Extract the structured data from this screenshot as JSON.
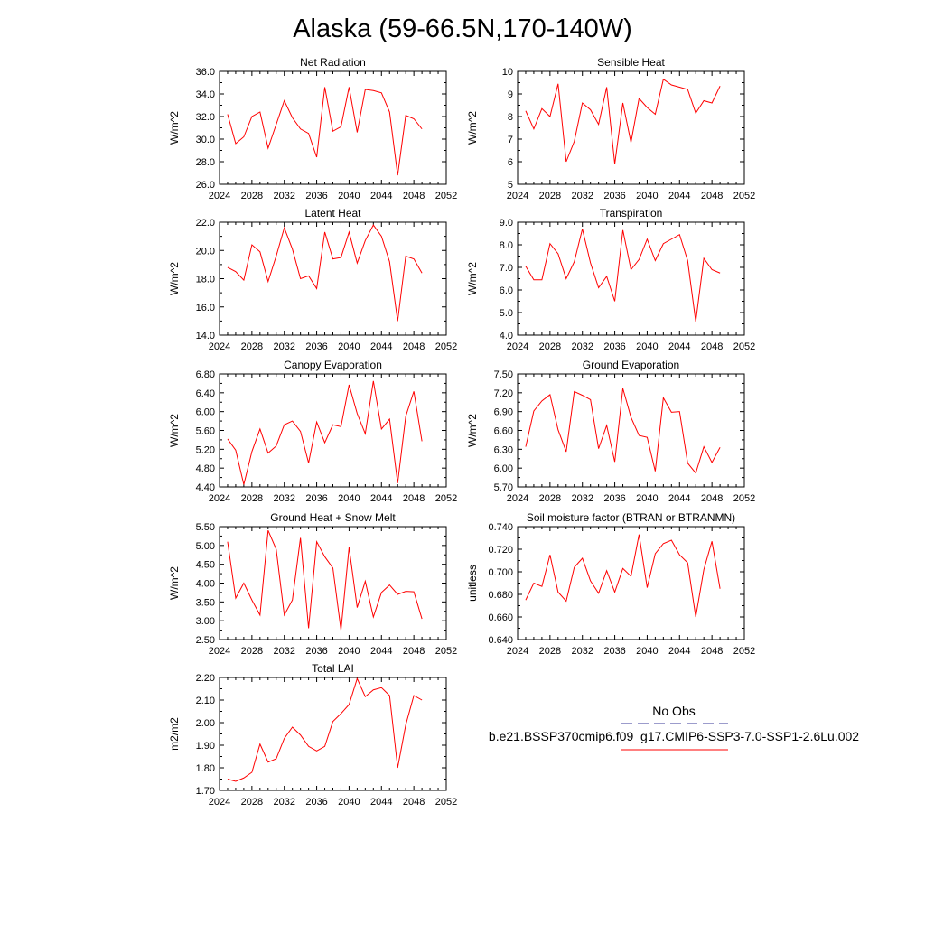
{
  "figure": {
    "title": "Alaska (59-66.5N,170-140W)"
  },
  "legend": {
    "obs_label": "No Obs",
    "model_label": "b.e21.BSSP370cmip6.f09_g17.CMIP6-SSP3-7.0-SSP1-2.6Lu.002",
    "obs_color": "#3a3a9a",
    "model_color": "#ff0000"
  },
  "chart_data": [
    {
      "type": "line",
      "title": "Net Radiation",
      "ylabel": "W/m^2",
      "xlabel": "",
      "xlim": [
        2024,
        2052
      ],
      "ylim": [
        26.0,
        36.0
      ],
      "xticks": [
        "2024",
        "2028",
        "2032",
        "2036",
        "2040",
        "2044",
        "2048",
        "2052"
      ],
      "yticks": [
        "26.0",
        "28.0",
        "30.0",
        "32.0",
        "34.0",
        "36.0"
      ],
      "x": [
        2025,
        2026,
        2027,
        2028,
        2029,
        2030,
        2031,
        2032,
        2033,
        2034,
        2035,
        2036,
        2037,
        2038,
        2039,
        2040,
        2041,
        2042,
        2043,
        2044,
        2045,
        2046,
        2047,
        2048,
        2049
      ],
      "series": [
        {
          "values": [
            32.2,
            29.6,
            30.2,
            32.0,
            32.4,
            29.2,
            31.3,
            33.4,
            31.9,
            30.9,
            30.5,
            28.4,
            34.6,
            30.7,
            31.1,
            34.6,
            30.6,
            34.4,
            34.3,
            34.1,
            32.4,
            26.8,
            32.1,
            31.8,
            30.9
          ],
          "color": "#ff0000"
        }
      ]
    },
    {
      "type": "line",
      "title": "Sensible Heat",
      "ylabel": "W/m^2",
      "xlabel": "",
      "xlim": [
        2024,
        2052
      ],
      "ylim": [
        5,
        10
      ],
      "xticks": [
        "2024",
        "2028",
        "2032",
        "2036",
        "2040",
        "2044",
        "2048",
        "2052"
      ],
      "yticks": [
        "5",
        "6",
        "7",
        "8",
        "9",
        "10"
      ],
      "x": [
        2025,
        2026,
        2027,
        2028,
        2029,
        2030,
        2031,
        2032,
        2033,
        2034,
        2035,
        2036,
        2037,
        2038,
        2039,
        2040,
        2041,
        2042,
        2043,
        2044,
        2045,
        2046,
        2047,
        2048,
        2049
      ],
      "series": [
        {
          "values": [
            8.25,
            7.45,
            8.35,
            8.0,
            9.45,
            6.0,
            6.9,
            8.6,
            8.3,
            7.65,
            9.3,
            5.9,
            8.6,
            6.85,
            8.8,
            8.4,
            8.1,
            9.65,
            9.4,
            9.3,
            9.2,
            8.15,
            8.7,
            8.6,
            9.35
          ],
          "color": "#ff0000"
        }
      ]
    },
    {
      "type": "line",
      "title": "Latent Heat",
      "ylabel": "W/m^2",
      "xlabel": "",
      "xlim": [
        2024,
        2052
      ],
      "ylim": [
        14.0,
        22.0
      ],
      "xticks": [
        "2024",
        "2028",
        "2032",
        "2036",
        "2040",
        "2044",
        "2048",
        "2052"
      ],
      "yticks": [
        "14.0",
        "16.0",
        "18.0",
        "20.0",
        "22.0"
      ],
      "x": [
        2025,
        2026,
        2027,
        2028,
        2029,
        2030,
        2031,
        2032,
        2033,
        2034,
        2035,
        2036,
        2037,
        2038,
        2039,
        2040,
        2041,
        2042,
        2043,
        2044,
        2045,
        2046,
        2047,
        2048,
        2049
      ],
      "series": [
        {
          "values": [
            18.8,
            18.5,
            17.9,
            20.4,
            19.9,
            17.8,
            19.6,
            21.6,
            20.1,
            18.0,
            18.2,
            17.3,
            21.3,
            19.4,
            19.5,
            21.3,
            19.1,
            20.7,
            21.8,
            21.0,
            19.2,
            15.0,
            19.6,
            19.4,
            18.4
          ],
          "color": "#ff0000"
        }
      ]
    },
    {
      "type": "line",
      "title": "Transpiration",
      "ylabel": "W/m^2",
      "xlabel": "",
      "xlim": [
        2024,
        2052
      ],
      "ylim": [
        4.0,
        9.0
      ],
      "xticks": [
        "2024",
        "2028",
        "2032",
        "2036",
        "2040",
        "2044",
        "2048",
        "2052"
      ],
      "yticks": [
        "4.0",
        "5.0",
        "6.0",
        "7.0",
        "8.0",
        "9.0"
      ],
      "x": [
        2025,
        2026,
        2027,
        2028,
        2029,
        2030,
        2031,
        2032,
        2033,
        2034,
        2035,
        2036,
        2037,
        2038,
        2039,
        2040,
        2041,
        2042,
        2043,
        2044,
        2045,
        2046,
        2047,
        2048,
        2049
      ],
      "series": [
        {
          "values": [
            7.05,
            6.45,
            6.45,
            8.05,
            7.6,
            6.5,
            7.25,
            8.7,
            7.2,
            6.1,
            6.6,
            5.5,
            8.65,
            6.9,
            7.35,
            8.25,
            7.3,
            8.05,
            8.25,
            8.45,
            7.3,
            4.6,
            7.4,
            6.9,
            6.75
          ],
          "color": "#ff0000"
        }
      ]
    },
    {
      "type": "line",
      "title": "Canopy Evaporation",
      "ylabel": "W/m^2",
      "xlabel": "",
      "xlim": [
        2024,
        2052
      ],
      "ylim": [
        4.4,
        6.8
      ],
      "xticks": [
        "2024",
        "2028",
        "2032",
        "2036",
        "2040",
        "2044",
        "2048",
        "2052"
      ],
      "yticks": [
        "4.40",
        "4.80",
        "5.20",
        "5.60",
        "6.00",
        "6.40",
        "6.80"
      ],
      "x": [
        2025,
        2026,
        2027,
        2028,
        2029,
        2030,
        2031,
        2032,
        2033,
        2034,
        2035,
        2036,
        2037,
        2038,
        2039,
        2040,
        2041,
        2042,
        2043,
        2044,
        2045,
        2046,
        2047,
        2048,
        2049
      ],
      "series": [
        {
          "values": [
            5.42,
            5.18,
            4.45,
            5.15,
            5.63,
            5.12,
            5.27,
            5.72,
            5.8,
            5.58,
            4.91,
            5.78,
            5.34,
            5.72,
            5.68,
            6.57,
            5.96,
            5.53,
            6.65,
            5.63,
            5.84,
            4.48,
            5.9,
            6.43,
            5.37
          ],
          "color": "#ff0000"
        }
      ]
    },
    {
      "type": "line",
      "title": "Ground Evaporation",
      "ylabel": "W/m^2",
      "xlabel": "",
      "xlim": [
        2024,
        2052
      ],
      "ylim": [
        5.7,
        7.5
      ],
      "xticks": [
        "2024",
        "2028",
        "2032",
        "2036",
        "2040",
        "2044",
        "2048",
        "2052"
      ],
      "yticks": [
        "5.70",
        "6.00",
        "6.30",
        "6.60",
        "6.90",
        "7.20",
        "7.50"
      ],
      "x": [
        2025,
        2026,
        2027,
        2028,
        2029,
        2030,
        2031,
        2032,
        2033,
        2034,
        2035,
        2036,
        2037,
        2038,
        2039,
        2040,
        2041,
        2042,
        2043,
        2044,
        2045,
        2046,
        2047,
        2048,
        2049
      ],
      "series": [
        {
          "values": [
            6.34,
            6.91,
            7.07,
            7.17,
            6.61,
            6.26,
            7.22,
            7.16,
            7.09,
            6.31,
            6.68,
            6.1,
            7.27,
            6.81,
            6.52,
            6.49,
            5.95,
            7.12,
            6.89,
            6.9,
            6.08,
            5.92,
            6.34,
            6.09,
            6.33
          ],
          "color": "#ff0000"
        }
      ]
    },
    {
      "type": "line",
      "title": "Ground Heat + Snow Melt",
      "ylabel": "W/m^2",
      "xlabel": "",
      "xlim": [
        2024,
        2052
      ],
      "ylim": [
        2.5,
        5.5
      ],
      "xticks": [
        "2024",
        "2028",
        "2032",
        "2036",
        "2040",
        "2044",
        "2048",
        "2052"
      ],
      "yticks": [
        "2.50",
        "3.00",
        "3.50",
        "4.00",
        "4.50",
        "5.00",
        "5.50"
      ],
      "x": [
        2025,
        2026,
        2027,
        2028,
        2029,
        2030,
        2031,
        2032,
        2033,
        2034,
        2035,
        2036,
        2037,
        2038,
        2039,
        2040,
        2041,
        2042,
        2043,
        2044,
        2045,
        2046,
        2047,
        2048,
        2049
      ],
      "series": [
        {
          "values": [
            5.1,
            3.6,
            4.0,
            3.55,
            3.15,
            5.4,
            4.9,
            3.15,
            3.55,
            5.2,
            2.8,
            5.1,
            4.7,
            4.4,
            2.75,
            4.95,
            3.35,
            4.05,
            3.1,
            3.75,
            3.95,
            3.7,
            3.78,
            3.77,
            3.05
          ],
          "color": "#ff0000"
        }
      ]
    },
    {
      "type": "line",
      "title": "Soil moisture factor (BTRAN or BTRANMN)",
      "ylabel": "unitless",
      "xlabel": "",
      "xlim": [
        2024,
        2052
      ],
      "ylim": [
        0.64,
        0.74
      ],
      "xticks": [
        "2024",
        "2028",
        "2032",
        "2036",
        "2040",
        "2044",
        "2048",
        "2052"
      ],
      "yticks": [
        "0.640",
        "0.660",
        "0.680",
        "0.700",
        "0.720",
        "0.740"
      ],
      "x": [
        2025,
        2026,
        2027,
        2028,
        2029,
        2030,
        2031,
        2032,
        2033,
        2034,
        2035,
        2036,
        2037,
        2038,
        2039,
        2040,
        2041,
        2042,
        2043,
        2044,
        2045,
        2046,
        2047,
        2048,
        2049
      ],
      "series": [
        {
          "values": [
            0.675,
            0.69,
            0.687,
            0.715,
            0.682,
            0.674,
            0.704,
            0.712,
            0.692,
            0.681,
            0.701,
            0.682,
            0.703,
            0.696,
            0.733,
            0.686,
            0.716,
            0.725,
            0.728,
            0.715,
            0.708,
            0.66,
            0.702,
            0.727,
            0.685
          ],
          "color": "#ff0000"
        }
      ]
    },
    {
      "type": "line",
      "title": "Total LAI",
      "ylabel": "m2/m2",
      "xlabel": "",
      "xlim": [
        2024,
        2052
      ],
      "ylim": [
        1.7,
        2.2
      ],
      "xticks": [
        "2024",
        "2028",
        "2032",
        "2036",
        "2040",
        "2044",
        "2048",
        "2052"
      ],
      "yticks": [
        "1.70",
        "1.80",
        "1.90",
        "2.00",
        "2.10",
        "2.20"
      ],
      "x": [
        2025,
        2026,
        2027,
        2028,
        2029,
        2030,
        2031,
        2032,
        2033,
        2034,
        2035,
        2036,
        2037,
        2038,
        2039,
        2040,
        2041,
        2042,
        2043,
        2044,
        2045,
        2046,
        2047,
        2048,
        2049
      ],
      "series": [
        {
          "values": [
            1.75,
            1.74,
            1.755,
            1.78,
            1.905,
            1.825,
            1.84,
            1.93,
            1.98,
            1.945,
            1.895,
            1.875,
            1.895,
            2.005,
            2.04,
            2.08,
            2.195,
            2.115,
            2.145,
            2.155,
            2.12,
            1.8,
            1.99,
            2.12,
            2.1
          ],
          "color": "#ff0000"
        }
      ]
    }
  ]
}
